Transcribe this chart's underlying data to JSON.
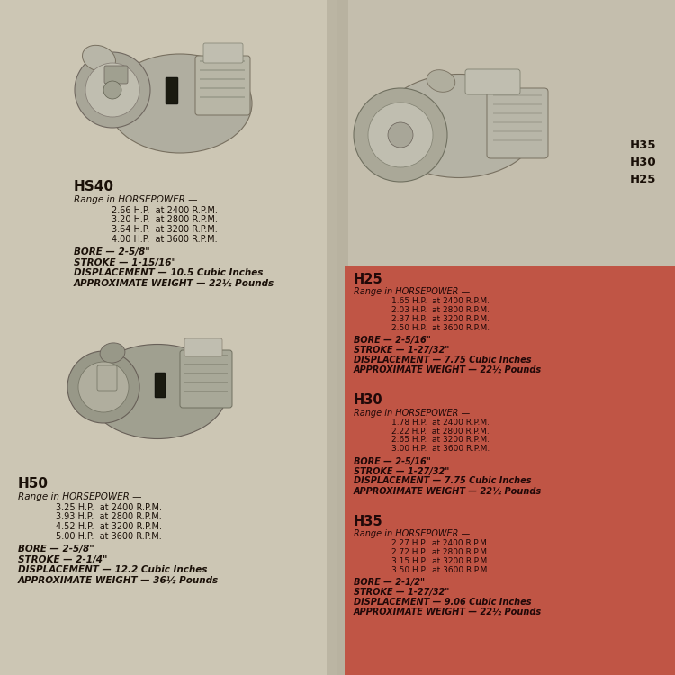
{
  "bg_left": "#ccc6b4",
  "bg_right": "#c4bead",
  "red_color": "#c05545",
  "tc": "#1a1008",
  "rc": "#200808",
  "hs40": {
    "label": "HS40",
    "range_header": "Range in HORSEPOWER —",
    "hp_lines": [
      "2.66 H.P.  at 2400 R.P.M.",
      "3.20 H.P.  at 2800 R.P.M.",
      "3.64 H.P.  at 3200 R.P.M.",
      "4.00 H.P.  at 3600 R.P.M."
    ],
    "bore": "BORE — 2-5/8\"",
    "stroke": "STROKE — 1-15/16\"",
    "displacement": "DISPLACEMENT — 10.5 Cubic Inches",
    "weight": "APPROXIMATE WEIGHT — 22½ Pounds"
  },
  "h50": {
    "label": "H50",
    "range_header": "Range in HORSEPOWER —",
    "hp_lines": [
      "3.25 H.P.  at 2400 R.P.M.",
      "3.93 H.P.  at 2800 R.P.M.",
      "4.52 H.P.  at 3200 R.P.M.",
      "5.00 H.P.  at 3600 R.P.M."
    ],
    "bore": "BORE — 2-5/8\"",
    "stroke": "STROKE — 2-1/4\"",
    "displacement": "DISPLACEMENT — 12.2 Cubic Inches",
    "weight": "APPROXIMATE WEIGHT — 36½ Pounds"
  },
  "right_labels": [
    "H35",
    "H30",
    "H25"
  ],
  "h25": {
    "label": "H25",
    "range_header": "Range in HORSEPOWER —",
    "hp_lines": [
      "1.65 H.P.  at 2400 R.P.M.",
      "2.03 H.P.  at 2800 R.P.M.",
      "2.37 H.P.  at 3200 R.P.M.",
      "2.50 H.P.  at 3600 R.P.M."
    ],
    "bore": "BORE — 2-5/16\"",
    "stroke": "STROKE — 1-27/32\"",
    "displacement": "DISPLACEMENT — 7.75 Cubic Inches",
    "weight": "APPROXIMATE WEIGHT — 22½ Pounds"
  },
  "h30": {
    "label": "H30",
    "range_header": "Range in HORSEPOWER —",
    "hp_lines": [
      "1.78 H.P.  at 2400 R.P.M.",
      "2.22 H.P.  at 2800 R.P.M.",
      "2.65 H.P.  at 3200 R.P.M.",
      "3.00 H.P.  at 3600 R.P.M."
    ],
    "bore": "BORE — 2-5/16\"",
    "stroke": "STROKE — 1-27/32\"",
    "displacement": "DISPLACEMENT — 7.75 Cubic Inches",
    "weight": "APPROXIMATE WEIGHT — 22½ Pounds"
  },
  "h35": {
    "label": "H35",
    "range_header": "Range in HORSEPOWER —",
    "hp_lines": [
      "2.27 H.P.  at 2400 R.P.M.",
      "2.72 H.P.  at 2800 R.P.M.",
      "3.15 H.P.  at 3200 R.P.M.",
      "3.50 H.P.  at 3600 R.P.M."
    ],
    "bore": "BORE — 2-1/2\"",
    "stroke": "STROKE — 1-27/32\"",
    "displacement": "DISPLACEMENT — 9.06 Cubic Inches",
    "weight": "APPROXIMATE WEIGHT — 22½ Pounds"
  }
}
